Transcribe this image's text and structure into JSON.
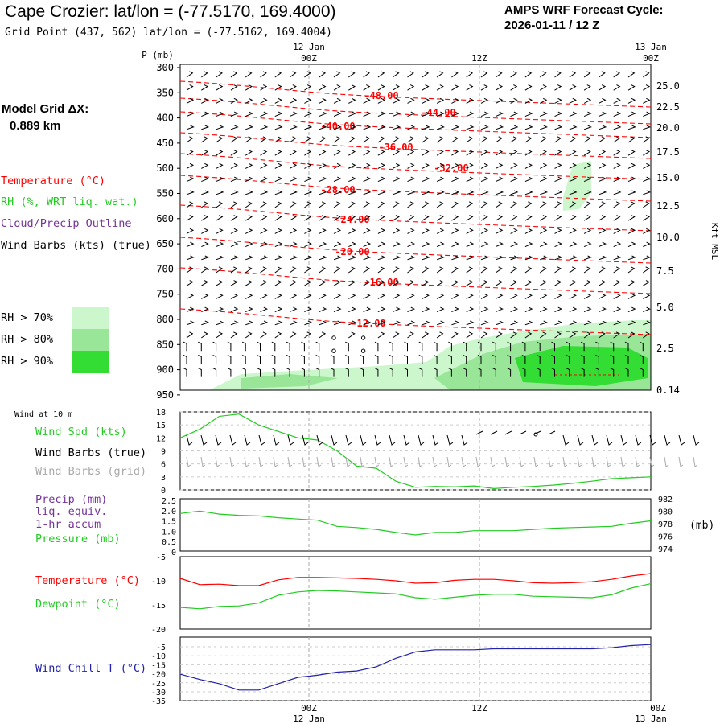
{
  "header": {
    "title": "Cape Crozier:  lat/lon = (-77.5170, 169.4000)",
    "subtitle": "Grid Point (437, 562) lat/lon = (-77.5162, 169.4004)",
    "cycle_line1": "AMPS WRF Forecast Cycle:",
    "cycle_line2": "2026-01-11 / 12  Z"
  },
  "model_grid": {
    "label": "Model Grid ΔX:",
    "value": "0.889 km"
  },
  "legend": {
    "temperature": "Temperature (°C)",
    "rh": "RH (%, WRT liq. wat.)",
    "cloud": "Cloud/Precip Outline",
    "barbs": "Wind Barbs (kts) (true)",
    "rh70": "RH > 70%",
    "rh80": "RH > 80%",
    "rh90": "RH > 90%"
  },
  "colors": {
    "temp": "#ff0000",
    "rh70": "#ccf7cc",
    "rh80": "#99e699",
    "rh90": "#33dd33",
    "green": "#22cc22",
    "purple": "#773399",
    "blue": "#2222aa",
    "grid": "#aaaaaa",
    "gray": "#aaaaaa"
  },
  "time_axis": {
    "top_date_left": "12 Jan",
    "top_date_right": "13 Jan",
    "ticks": [
      "00Z",
      "12Z",
      "00Z"
    ],
    "bottom_date_left": "12 Jan",
    "bottom_date_right": "13 Jan"
  },
  "chart_data": [
    {
      "type": "contour",
      "title": "Vertical cross-section",
      "ylabel": "P (mb)",
      "y2label": "Kft MSL",
      "pressure_levels": [
        300,
        350,
        400,
        450,
        500,
        550,
        600,
        650,
        700,
        750,
        800,
        850,
        900,
        950
      ],
      "height_labels": [
        "25.0",
        "22.5",
        "20.0",
        "17.5",
        "15.0",
        "12.5",
        "10.0",
        "7.5",
        "5.0",
        "2.5",
        "0.14"
      ],
      "temperature_labels": [
        "-48.00",
        "-44.00",
        "-40.00",
        "-36.00",
        "-32.00",
        "-28.00",
        "-24.00",
        "-20.00",
        "-16.00",
        "-12.00"
      ]
    },
    {
      "type": "line",
      "title": "Wind at 10 m",
      "series_labels": [
        "Wind Spd (kts)",
        "Wind Barbs (true)",
        "Wind Barbs (grid)"
      ],
      "yticks": [
        "18",
        "15",
        "12",
        "9",
        "6",
        "3",
        "0"
      ],
      "ylim": [
        0,
        18
      ],
      "x_hours": [
        0,
        2,
        4,
        6,
        8,
        10,
        12,
        14,
        16,
        18,
        20,
        22,
        24,
        26,
        28,
        30,
        32,
        34,
        36,
        38,
        40,
        42,
        44,
        46,
        48
      ],
      "values": [
        12,
        14,
        17,
        17.5,
        15,
        13.5,
        12,
        11.5,
        9,
        5.5,
        5,
        2,
        0.6,
        0.8,
        0.7,
        0.9,
        0.3,
        0.6,
        0.8,
        1.1,
        1.5,
        2,
        2.6,
        2.8,
        3
      ]
    },
    {
      "type": "line",
      "title": "Precip / Pressure",
      "series_labels": [
        "Precip (mm)",
        "liq. equiv.",
        "1-hr accum",
        "Pressure (mb)"
      ],
      "yticks_left": [
        "2.5",
        "2.0",
        "1.5",
        "1.0",
        "0.5",
        "0"
      ],
      "yticks_right": [
        "982",
        "980",
        "978",
        "976",
        "974"
      ],
      "y2label": "(mb)",
      "ylim": [
        974,
        982
      ],
      "x_hours": [
        0,
        2,
        4,
        6,
        8,
        10,
        12,
        14,
        16,
        18,
        20,
        22,
        24,
        26,
        28,
        30,
        32,
        34,
        36,
        38,
        40,
        42,
        44,
        46,
        48
      ],
      "values": [
        979.6,
        980,
        979.5,
        979.3,
        979.2,
        978.9,
        978.7,
        978.5,
        977.5,
        977.3,
        977,
        976.5,
        976.1,
        976.5,
        976.5,
        976.8,
        976.8,
        976.8,
        977,
        977.2,
        977.3,
        977.4,
        977.5,
        978,
        978.4
      ]
    },
    {
      "type": "line",
      "title": "Temperature / Dewpoint",
      "series_labels": [
        "Temperature (°C)",
        "Dewpoint (°C)"
      ],
      "yticks": [
        "-5",
        "-10",
        "-15",
        "-20"
      ],
      "ylim": [
        -20,
        -5
      ],
      "x_hours": [
        0,
        2,
        4,
        6,
        8,
        10,
        12,
        14,
        16,
        18,
        20,
        22,
        24,
        26,
        28,
        30,
        32,
        34,
        36,
        38,
        40,
        42,
        44,
        46,
        48
      ],
      "series": [
        {
          "name": "Temperature",
          "values": [
            -9.5,
            -10.8,
            -10.7,
            -11,
            -11,
            -9.8,
            -9.3,
            -9.3,
            -9.4,
            -9.5,
            -9.7,
            -10,
            -10.5,
            -10.4,
            -9.9,
            -9.7,
            -9.7,
            -10,
            -10.4,
            -10.5,
            -10.4,
            -10.2,
            -9.7,
            -9,
            -8.5
          ]
        },
        {
          "name": "Dewpoint",
          "values": [
            -15.5,
            -15.8,
            -15.3,
            -15.2,
            -14.6,
            -13,
            -12.3,
            -12,
            -12.1,
            -12.3,
            -12.5,
            -12.7,
            -13.5,
            -13.8,
            -13.4,
            -13,
            -12.8,
            -12.8,
            -13.2,
            -13.3,
            -13.4,
            -13.5,
            -12.9,
            -11.5,
            -10.6
          ]
        }
      ]
    },
    {
      "type": "line",
      "title": "Wind Chill",
      "series_labels": [
        "Wind Chill T (°C)"
      ],
      "yticks": [
        "-5",
        "-10",
        "-15",
        "-20",
        "-25",
        "-30",
        "-35"
      ],
      "ylim": [
        -35,
        -5
      ],
      "x_hours": [
        0,
        2,
        4,
        6,
        8,
        10,
        12,
        14,
        16,
        18,
        20,
        22,
        24,
        26,
        28,
        30,
        32,
        34,
        36,
        38,
        40,
        42,
        44,
        46,
        48
      ],
      "values": [
        -22.5,
        -25,
        -27,
        -30,
        -30,
        -27,
        -24,
        -23,
        -21.5,
        -21,
        -19,
        -15,
        -12,
        -11,
        -11,
        -11,
        -10.5,
        -10.5,
        -10.5,
        -10.5,
        -10.5,
        -10.5,
        -10,
        -9,
        -8.5
      ]
    }
  ]
}
